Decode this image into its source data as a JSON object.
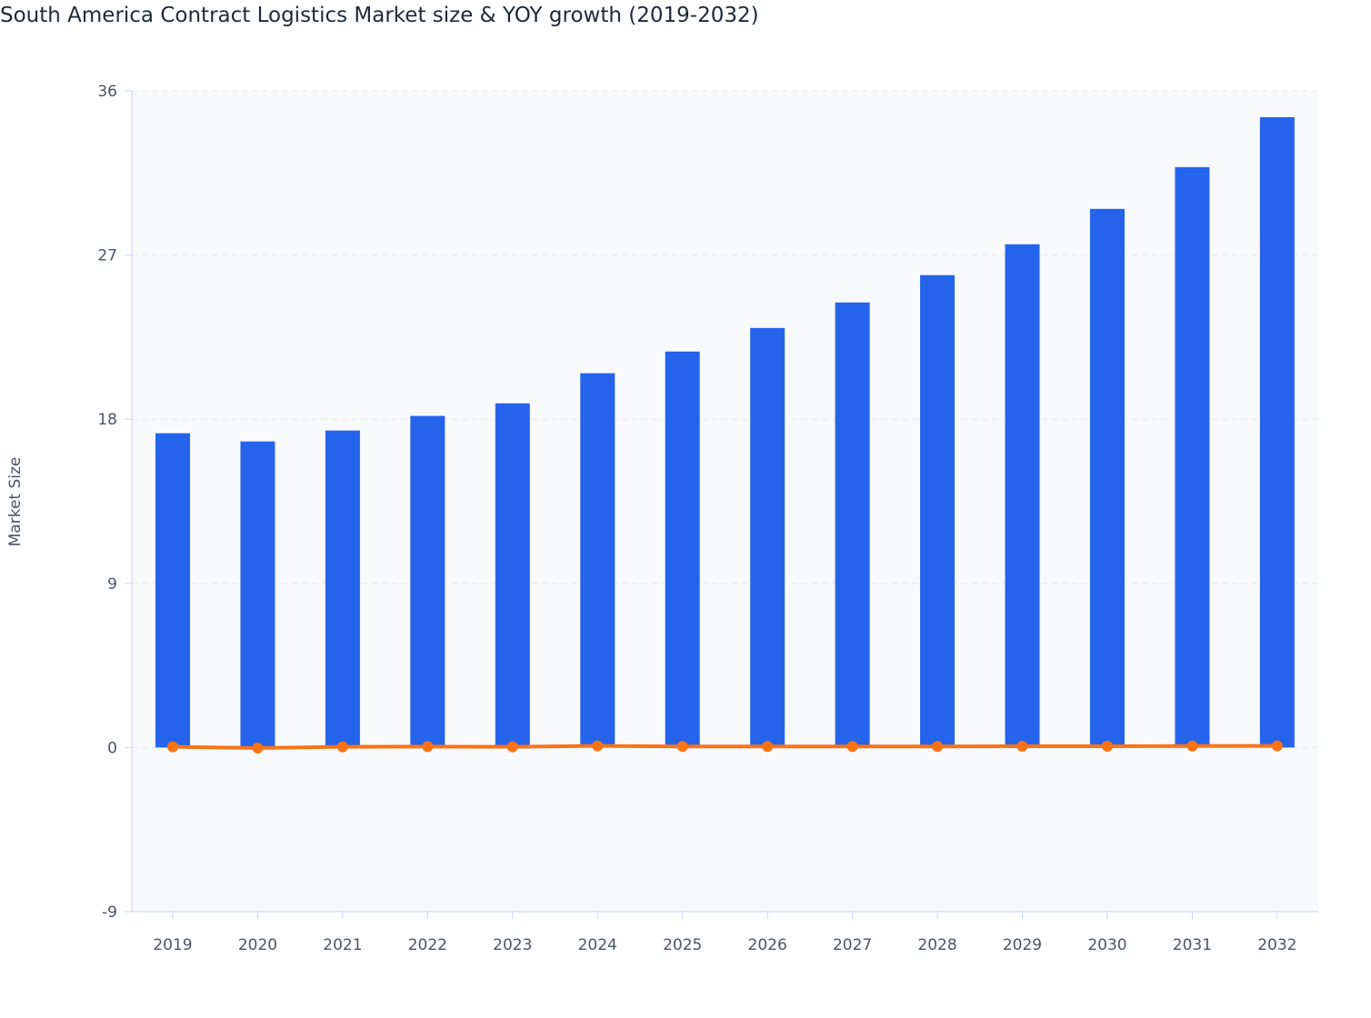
{
  "chart_data": {
    "type": "bar",
    "title": "South America Contract Logistics Market size & YOY growth (2019-2032)",
    "ylabel": "Market Size",
    "xlabel": "",
    "ylim": [
      -9,
      36
    ],
    "yticks": [
      -9,
      0,
      9,
      18,
      27,
      36
    ],
    "grid": true,
    "categories": [
      "2019",
      "2020",
      "2021",
      "2022",
      "2023",
      "2024",
      "2025",
      "2026",
      "2027",
      "2028",
      "2029",
      "2030",
      "2031",
      "2032"
    ],
    "series": [
      {
        "type": "bar",
        "color": "#2563eb",
        "values": [
          17.23,
          16.78,
          17.38,
          18.18,
          18.87,
          20.52,
          21.71,
          23.0,
          24.4,
          25.9,
          27.59,
          29.53,
          31.82,
          34.56
        ]
      },
      {
        "type": "line",
        "color": "#f97316",
        "values": [
          0.04,
          -0.03,
          0.04,
          0.05,
          0.04,
          0.09,
          0.06,
          0.06,
          0.06,
          0.06,
          0.07,
          0.07,
          0.08,
          0.09
        ]
      }
    ]
  }
}
